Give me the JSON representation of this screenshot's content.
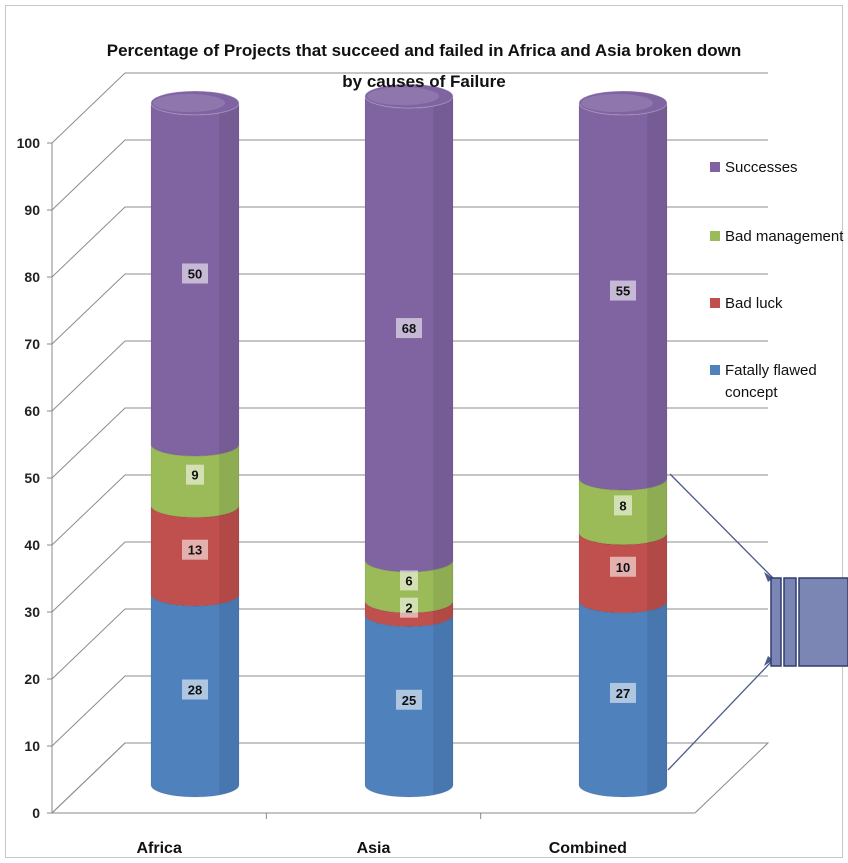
{
  "chart_data": {
    "type": "bar",
    "stacked": true,
    "style": "3d-cylinder",
    "title": "Percentage of Projects that succeed and failed in Africa and Asia broken down by causes of Failure",
    "title_lines": [
      "Percentage of Projects that succeed and failed in Africa and Asia broken down",
      "by causes of Failure"
    ],
    "categories": [
      "Africa",
      "Asia",
      "Combined"
    ],
    "series": [
      {
        "name": "Fatally flawed concept",
        "legend_lines": [
          "Fatally flawed",
          "concept"
        ],
        "values": [
          28,
          25,
          27
        ],
        "color": "#4f81bd"
      },
      {
        "name": "Bad luck",
        "legend_lines": [
          "Bad luck"
        ],
        "values": [
          13,
          2,
          10
        ],
        "color": "#c0504d"
      },
      {
        "name": "Bad management",
        "legend_lines": [
          "Bad management"
        ],
        "values": [
          9,
          6,
          8
        ],
        "color": "#9bbb59"
      },
      {
        "name": "Successes",
        "legend_lines": [
          "Successes"
        ],
        "values": [
          50,
          68,
          55
        ],
        "color": "#8064a2"
      }
    ],
    "ylim": [
      0,
      100
    ],
    "yticks": [
      0,
      10,
      20,
      30,
      40,
      50,
      60,
      70,
      80,
      90,
      100
    ],
    "grid": true,
    "legend_position": "right",
    "xlabel": "",
    "ylabel": ""
  }
}
